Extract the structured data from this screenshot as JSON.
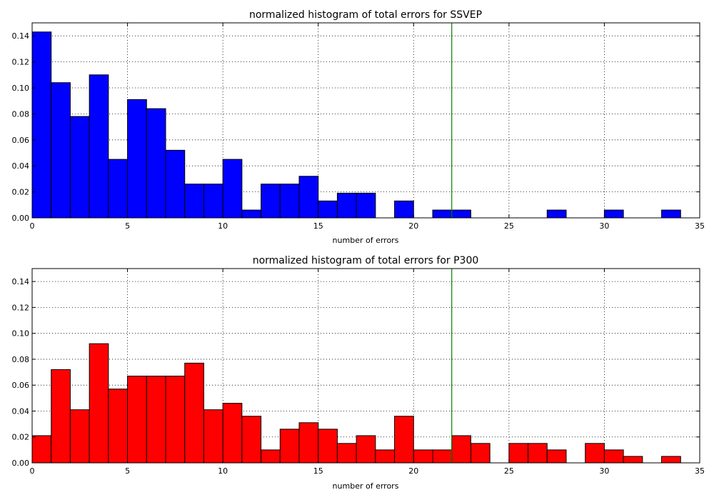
{
  "chart_data": [
    {
      "type": "bar",
      "title": "normalized histogram of total errors for SSVEP",
      "xlabel": "number of errors",
      "ylabel": "",
      "xlim": [
        0,
        35
      ],
      "ylim": [
        0,
        0.15
      ],
      "xticks": [
        0,
        5,
        10,
        15,
        20,
        25,
        30,
        35
      ],
      "yticks": [
        0.0,
        0.02,
        0.04,
        0.06,
        0.08,
        0.1,
        0.12,
        0.14
      ],
      "grid": true,
      "bin_width": 1,
      "color": "#0000ff",
      "vline": {
        "x": 22,
        "color": "#008000"
      },
      "bins": [
        0,
        1,
        2,
        3,
        4,
        5,
        6,
        7,
        8,
        9,
        10,
        11,
        12,
        13,
        14,
        15,
        16,
        17,
        18,
        19,
        20,
        21,
        22,
        23,
        24,
        25,
        26,
        27,
        28,
        29,
        30,
        31,
        32,
        33
      ],
      "values": [
        0.143,
        0.104,
        0.078,
        0.11,
        0.045,
        0.091,
        0.084,
        0.052,
        0.026,
        0.026,
        0.045,
        0.006,
        0.026,
        0.026,
        0.032,
        0.013,
        0.019,
        0.019,
        0,
        0.013,
        0,
        0.006,
        0.006,
        0,
        0,
        0,
        0,
        0.006,
        0,
        0,
        0.006,
        0,
        0,
        0.006
      ]
    },
    {
      "type": "bar",
      "title": "normalized histogram of total errors for P300",
      "xlabel": "number of errors",
      "ylabel": "",
      "xlim": [
        0,
        35
      ],
      "ylim": [
        0,
        0.15
      ],
      "xticks": [
        0,
        5,
        10,
        15,
        20,
        25,
        30,
        35
      ],
      "yticks": [
        0.0,
        0.02,
        0.04,
        0.06,
        0.08,
        0.1,
        0.12,
        0.14
      ],
      "grid": true,
      "bin_width": 1,
      "color": "#ff0000",
      "vline": {
        "x": 22,
        "color": "#008000"
      },
      "bins": [
        0,
        1,
        2,
        3,
        4,
        5,
        6,
        7,
        8,
        9,
        10,
        11,
        12,
        13,
        14,
        15,
        16,
        17,
        18,
        19,
        20,
        21,
        22,
        23,
        24,
        25,
        26,
        27,
        28,
        29,
        30,
        31,
        32,
        33
      ],
      "values": [
        0.021,
        0.072,
        0.041,
        0.092,
        0.057,
        0.067,
        0.067,
        0.067,
        0.077,
        0.041,
        0.046,
        0.036,
        0.01,
        0.026,
        0.031,
        0.026,
        0.015,
        0.021,
        0.01,
        0.036,
        0.01,
        0.01,
        0.021,
        0.015,
        0,
        0.015,
        0.015,
        0.01,
        0,
        0.015,
        0.01,
        0.005,
        0,
        0.005
      ]
    }
  ]
}
